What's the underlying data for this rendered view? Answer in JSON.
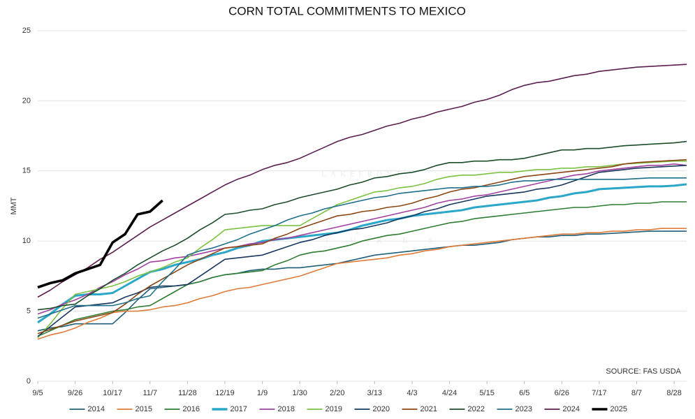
{
  "chart_data": {
    "type": "line",
    "title": "CORN TOTAL COMMITMENTS TO MEXICO",
    "y_label": "MMT",
    "source": "SOURCE: FAS USDA",
    "watermark": [
      "LAKEFRONT",
      "FUTURES"
    ],
    "categories": [
      "9/5",
      null,
      null,
      "9/26",
      null,
      null,
      "10/17",
      null,
      null,
      "11/7",
      null,
      null,
      "11/28",
      null,
      null,
      "12/19",
      null,
      null,
      "1/9",
      null,
      null,
      "1/30",
      null,
      null,
      "2/20",
      null,
      null,
      "3/13",
      null,
      null,
      "4/3",
      null,
      null,
      "4/24",
      null,
      null,
      "5/15",
      null,
      null,
      "6/5",
      null,
      null,
      "6/26",
      null,
      null,
      "7/17",
      null,
      null,
      "8/7",
      null,
      null,
      "8/28",
      null
    ],
    "ylim": [
      0,
      25
    ],
    "yticks": [
      0,
      5,
      10,
      15,
      20,
      25
    ],
    "grid": true,
    "legend": "bottom",
    "series": [
      {
        "name": "2014",
        "color": "#1f5f7a",
        "values": [
          3.6,
          3.8,
          3.9,
          4.1,
          4.1,
          4.1,
          4.1,
          4.9,
          5.8,
          6.6,
          6.7,
          6.8,
          6.9,
          7.1,
          7.4,
          7.6,
          7.7,
          7.9,
          8.0,
          8.0,
          8.1,
          8.1,
          8.2,
          8.3,
          8.4,
          8.6,
          8.8,
          9.0,
          9.1,
          9.2,
          9.3,
          9.4,
          9.5,
          9.6,
          9.7,
          9.7,
          9.8,
          9.9,
          10.1,
          10.2,
          10.3,
          10.3,
          10.4,
          10.4,
          10.5,
          10.5,
          10.55,
          10.6,
          10.65,
          10.7,
          10.7,
          10.7,
          10.7
        ]
      },
      {
        "name": "2015",
        "color": "#e07b39",
        "values": [
          3.0,
          3.3,
          3.5,
          3.8,
          4.2,
          4.5,
          4.9,
          5.0,
          5.0,
          5.1,
          5.3,
          5.4,
          5.6,
          5.9,
          6.1,
          6.4,
          6.6,
          6.7,
          6.9,
          7.1,
          7.3,
          7.5,
          7.8,
          8.1,
          8.4,
          8.5,
          8.6,
          8.7,
          8.8,
          9.0,
          9.1,
          9.3,
          9.4,
          9.6,
          9.7,
          9.8,
          9.9,
          10.0,
          10.1,
          10.2,
          10.3,
          10.4,
          10.5,
          10.5,
          10.6,
          10.6,
          10.7,
          10.7,
          10.8,
          10.8,
          10.9,
          10.9,
          10.9
        ]
      },
      {
        "name": "2016",
        "color": "#2e7d32",
        "values": [
          3.2,
          3.6,
          4.0,
          4.4,
          4.6,
          4.8,
          5.0,
          5.1,
          5.3,
          5.4,
          5.9,
          6.4,
          6.9,
          7.1,
          7.4,
          7.6,
          7.7,
          7.8,
          7.9,
          8.3,
          8.6,
          9.0,
          9.2,
          9.3,
          9.5,
          9.7,
          10.0,
          10.2,
          10.4,
          10.5,
          10.7,
          10.9,
          11.1,
          11.3,
          11.4,
          11.6,
          11.7,
          11.8,
          11.9,
          12.0,
          12.1,
          12.2,
          12.3,
          12.4,
          12.4,
          12.5,
          12.6,
          12.6,
          12.7,
          12.7,
          12.8,
          12.8,
          12.8
        ]
      },
      {
        "name": "2017",
        "color": "#2aa7c9",
        "values": [
          4.2,
          4.8,
          5.5,
          6.1,
          6.2,
          6.2,
          6.3,
          6.8,
          7.3,
          7.8,
          8.0,
          8.3,
          8.5,
          8.7,
          9.0,
          9.2,
          9.5,
          9.7,
          10.0,
          10.1,
          10.2,
          10.3,
          10.4,
          10.5,
          10.6,
          10.8,
          11.1,
          11.3,
          11.5,
          11.6,
          11.8,
          11.9,
          12.0,
          12.1,
          12.2,
          12.4,
          12.5,
          12.6,
          12.7,
          12.8,
          12.9,
          13.1,
          13.2,
          13.4,
          13.5,
          13.7,
          13.75,
          13.8,
          13.85,
          13.9,
          13.9,
          13.95,
          14.05
        ]
      },
      {
        "name": "2018",
        "color": "#a040a0",
        "values": [
          4.8,
          5.1,
          5.5,
          5.8,
          6.2,
          6.7,
          7.1,
          7.6,
          8.0,
          8.5,
          8.6,
          8.8,
          8.9,
          9.1,
          9.3,
          9.5,
          9.6,
          9.8,
          9.9,
          10.1,
          10.2,
          10.4,
          10.6,
          10.8,
          11.0,
          11.2,
          11.4,
          11.6,
          11.8,
          12.0,
          12.2,
          12.4,
          12.7,
          12.9,
          13.0,
          13.2,
          13.3,
          13.5,
          13.7,
          13.9,
          14.1,
          14.3,
          14.5,
          14.7,
          14.8,
          15.0,
          15.1,
          15.2,
          15.3,
          15.4,
          15.4,
          15.5,
          15.4
        ]
      },
      {
        "name": "2019",
        "color": "#7cc242",
        "values": [
          3.1,
          4.1,
          5.2,
          6.2,
          6.4,
          6.6,
          6.8,
          7.1,
          7.5,
          7.8,
          8.1,
          8.5,
          8.8,
          9.5,
          10.1,
          10.8,
          10.9,
          11.0,
          11.1,
          11.1,
          11.1,
          11.1,
          11.6,
          12.1,
          12.6,
          12.9,
          13.2,
          13.5,
          13.6,
          13.8,
          13.9,
          14.1,
          14.4,
          14.6,
          14.7,
          14.7,
          14.8,
          14.9,
          14.9,
          15.0,
          15.1,
          15.1,
          15.2,
          15.2,
          15.3,
          15.3,
          15.4,
          15.5,
          15.55,
          15.6,
          15.65,
          15.7,
          15.7
        ]
      },
      {
        "name": "2020",
        "color": "#17375e",
        "values": [
          3.2,
          3.9,
          4.6,
          5.3,
          5.4,
          5.5,
          5.6,
          6.0,
          6.3,
          6.7,
          6.8,
          6.8,
          6.9,
          7.5,
          8.1,
          8.7,
          8.8,
          8.9,
          9.0,
          9.3,
          9.6,
          9.9,
          10.1,
          10.4,
          10.6,
          10.8,
          10.9,
          11.1,
          11.3,
          11.6,
          11.8,
          12.1,
          12.3,
          12.6,
          12.8,
          13.0,
          13.2,
          13.3,
          13.4,
          13.5,
          13.7,
          13.8,
          14.0,
          14.3,
          14.6,
          14.9,
          15.0,
          15.1,
          15.2,
          15.25,
          15.3,
          15.35,
          15.4
        ]
      },
      {
        "name": "2021",
        "color": "#8b4513",
        "values": [
          3.4,
          3.7,
          4.0,
          4.3,
          4.5,
          4.7,
          4.9,
          5.5,
          6.2,
          6.8,
          7.3,
          7.8,
          8.3,
          8.7,
          9.1,
          9.5,
          9.6,
          9.7,
          9.8,
          10.2,
          10.5,
          10.9,
          11.2,
          11.5,
          11.8,
          11.9,
          12.1,
          12.2,
          12.4,
          12.5,
          12.7,
          13.0,
          13.2,
          13.5,
          13.7,
          13.8,
          14.0,
          14.2,
          14.4,
          14.6,
          14.7,
          14.8,
          14.9,
          15.0,
          15.1,
          15.2,
          15.3,
          15.5,
          15.6,
          15.65,
          15.7,
          15.75,
          15.8
        ]
      },
      {
        "name": "2022",
        "color": "#1b4d2b",
        "values": [
          5.1,
          5.2,
          5.4,
          5.5,
          6.1,
          6.6,
          7.2,
          7.7,
          8.3,
          8.8,
          9.3,
          9.7,
          10.2,
          10.8,
          11.3,
          11.9,
          12.0,
          12.2,
          12.3,
          12.6,
          12.8,
          13.1,
          13.3,
          13.5,
          13.7,
          14.0,
          14.2,
          14.5,
          14.6,
          14.8,
          14.9,
          15.1,
          15.4,
          15.6,
          15.6,
          15.7,
          15.7,
          15.8,
          15.8,
          15.9,
          16.1,
          16.3,
          16.5,
          16.5,
          16.6,
          16.6,
          16.7,
          16.8,
          16.85,
          16.9,
          16.95,
          17.0,
          17.1
        ]
      },
      {
        "name": "2023",
        "color": "#1f6f8b",
        "values": [
          4.5,
          4.8,
          5.1,
          5.4,
          5.4,
          5.4,
          5.4,
          5.6,
          5.9,
          6.1,
          7.1,
          8.0,
          9.0,
          9.3,
          9.5,
          9.8,
          10.1,
          10.5,
          10.8,
          11.1,
          11.5,
          11.8,
          12.0,
          12.3,
          12.5,
          12.7,
          12.9,
          13.1,
          13.2,
          13.4,
          13.5,
          13.6,
          13.7,
          13.8,
          13.8,
          13.9,
          13.9,
          14.0,
          14.2,
          14.3,
          14.3,
          14.4,
          14.4,
          14.4,
          14.4,
          14.4,
          14.4,
          14.4,
          14.45,
          14.5,
          14.5,
          14.5,
          14.5
        ]
      },
      {
        "name": "2024",
        "color": "#5a1f4f",
        "values": [
          6.0,
          6.5,
          7.1,
          7.6,
          8.1,
          8.7,
          9.2,
          9.8,
          10.4,
          11.0,
          11.5,
          12.0,
          12.5,
          13.0,
          13.5,
          14.0,
          14.4,
          14.7,
          15.1,
          15.4,
          15.6,
          15.9,
          16.3,
          16.7,
          17.1,
          17.4,
          17.6,
          17.9,
          18.2,
          18.4,
          18.7,
          18.9,
          19.2,
          19.4,
          19.6,
          19.9,
          20.1,
          20.4,
          20.8,
          21.1,
          21.3,
          21.4,
          21.6,
          21.8,
          21.9,
          22.1,
          22.2,
          22.3,
          22.4,
          22.45,
          22.5,
          22.55,
          22.6
        ]
      },
      {
        "name": "2025",
        "color": "#000000",
        "values": [
          6.7,
          7.0,
          7.2,
          7.7,
          8.0,
          8.3,
          9.9,
          10.5,
          11.9,
          12.1,
          12.9,
          null,
          null,
          null,
          null,
          null,
          null,
          null,
          null,
          null,
          null,
          null,
          null,
          null,
          null,
          null,
          null,
          null,
          null,
          null,
          null,
          null,
          null,
          null,
          null,
          null,
          null,
          null,
          null,
          null,
          null,
          null,
          null,
          null,
          null,
          null,
          null,
          null,
          null,
          null,
          null,
          null,
          null
        ]
      }
    ]
  }
}
